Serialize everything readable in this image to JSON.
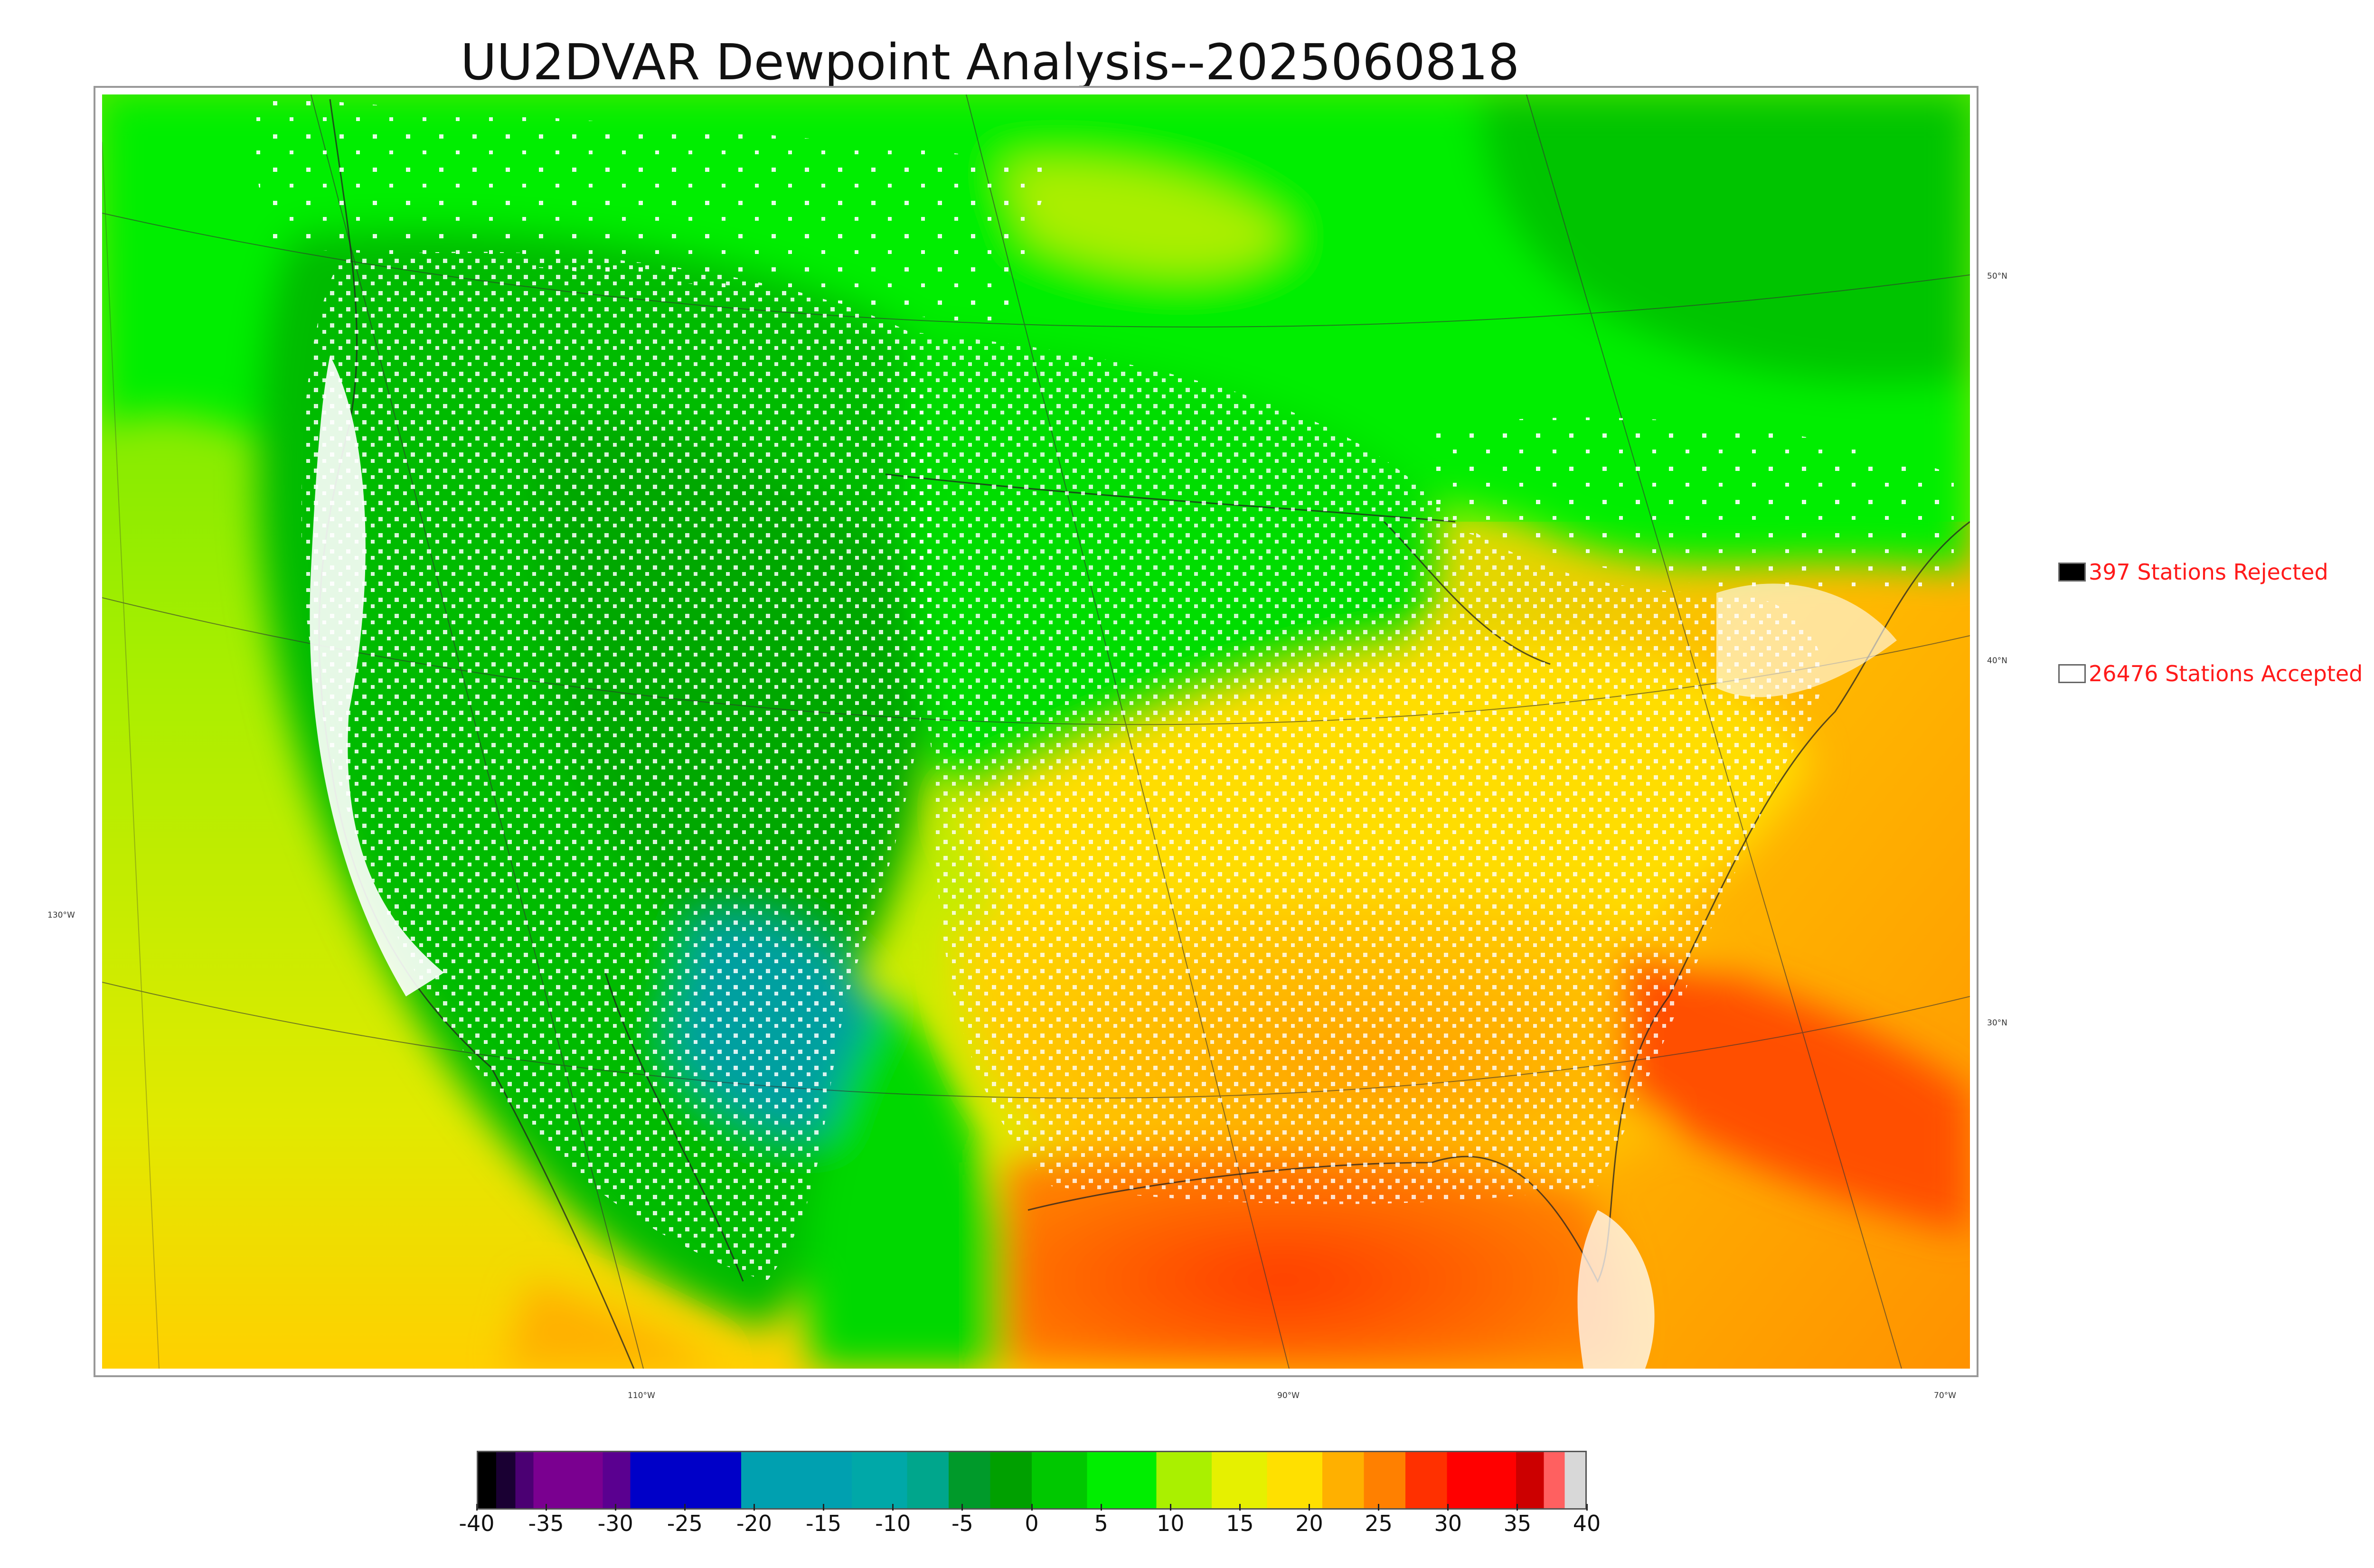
{
  "title": "UU2DVAR Dewpoint Analysis--2025060818",
  "map": {
    "latitude_labels": [
      "50°N",
      "40°N",
      "30°N"
    ],
    "longitude_labels": [
      "130°W",
      "110°W",
      "90°W",
      "70°W"
    ]
  },
  "legend": {
    "rejected": {
      "label": "397 Stations Rejected",
      "swatch_color": "#000000"
    },
    "accepted": {
      "label": "26476 Stations Accepted",
      "swatch_color": "#ffffff"
    }
  },
  "colorbar": {
    "tick_labels": [
      "-40",
      "-35",
      "-30",
      "-25",
      "-20",
      "-15",
      "-10",
      "-5",
      "0",
      "5",
      "10",
      "15",
      "20",
      "25",
      "30",
      "35",
      "40"
    ],
    "range": [
      -40,
      40
    ],
    "bands": [
      {
        "from": -40,
        "to": -38.7,
        "color": "#000000"
      },
      {
        "from": -38.7,
        "to": -37.3,
        "color": "#1a0033"
      },
      {
        "from": -37.3,
        "to": -36,
        "color": "#4b0073"
      },
      {
        "from": -36,
        "to": -31,
        "color": "#7a0090"
      },
      {
        "from": -31,
        "to": -29,
        "color": "#5a0090"
      },
      {
        "from": -29,
        "to": -21,
        "color": "#0000c8"
      },
      {
        "from": -21,
        "to": -13,
        "color": "#00a0b0"
      },
      {
        "from": -13,
        "to": -9,
        "color": "#00a8a8"
      },
      {
        "from": -9,
        "to": -6,
        "color": "#00a68c"
      },
      {
        "from": -6,
        "to": -3,
        "color": "#009a2a"
      },
      {
        "from": -3,
        "to": 0,
        "color": "#00a000"
      },
      {
        "from": 0,
        "to": 4,
        "color": "#00c800"
      },
      {
        "from": 4,
        "to": 9,
        "color": "#00ee00"
      },
      {
        "from": 9,
        "to": 13,
        "color": "#aaf000"
      },
      {
        "from": 13,
        "to": 17,
        "color": "#e6f000"
      },
      {
        "from": 17,
        "to": 21,
        "color": "#ffe000"
      },
      {
        "from": 21,
        "to": 24,
        "color": "#ffb000"
      },
      {
        "from": 24,
        "to": 27,
        "color": "#ff8000"
      },
      {
        "from": 27,
        "to": 30,
        "color": "#ff3000"
      },
      {
        "from": 30,
        "to": 35,
        "color": "#ff0000"
      },
      {
        "from": 35,
        "to": 37,
        "color": "#cc0000"
      },
      {
        "from": 37,
        "to": 38.5,
        "color": "#ff6060"
      },
      {
        "from": 38.5,
        "to": 40,
        "color": "#d8d8d8"
      }
    ]
  }
}
